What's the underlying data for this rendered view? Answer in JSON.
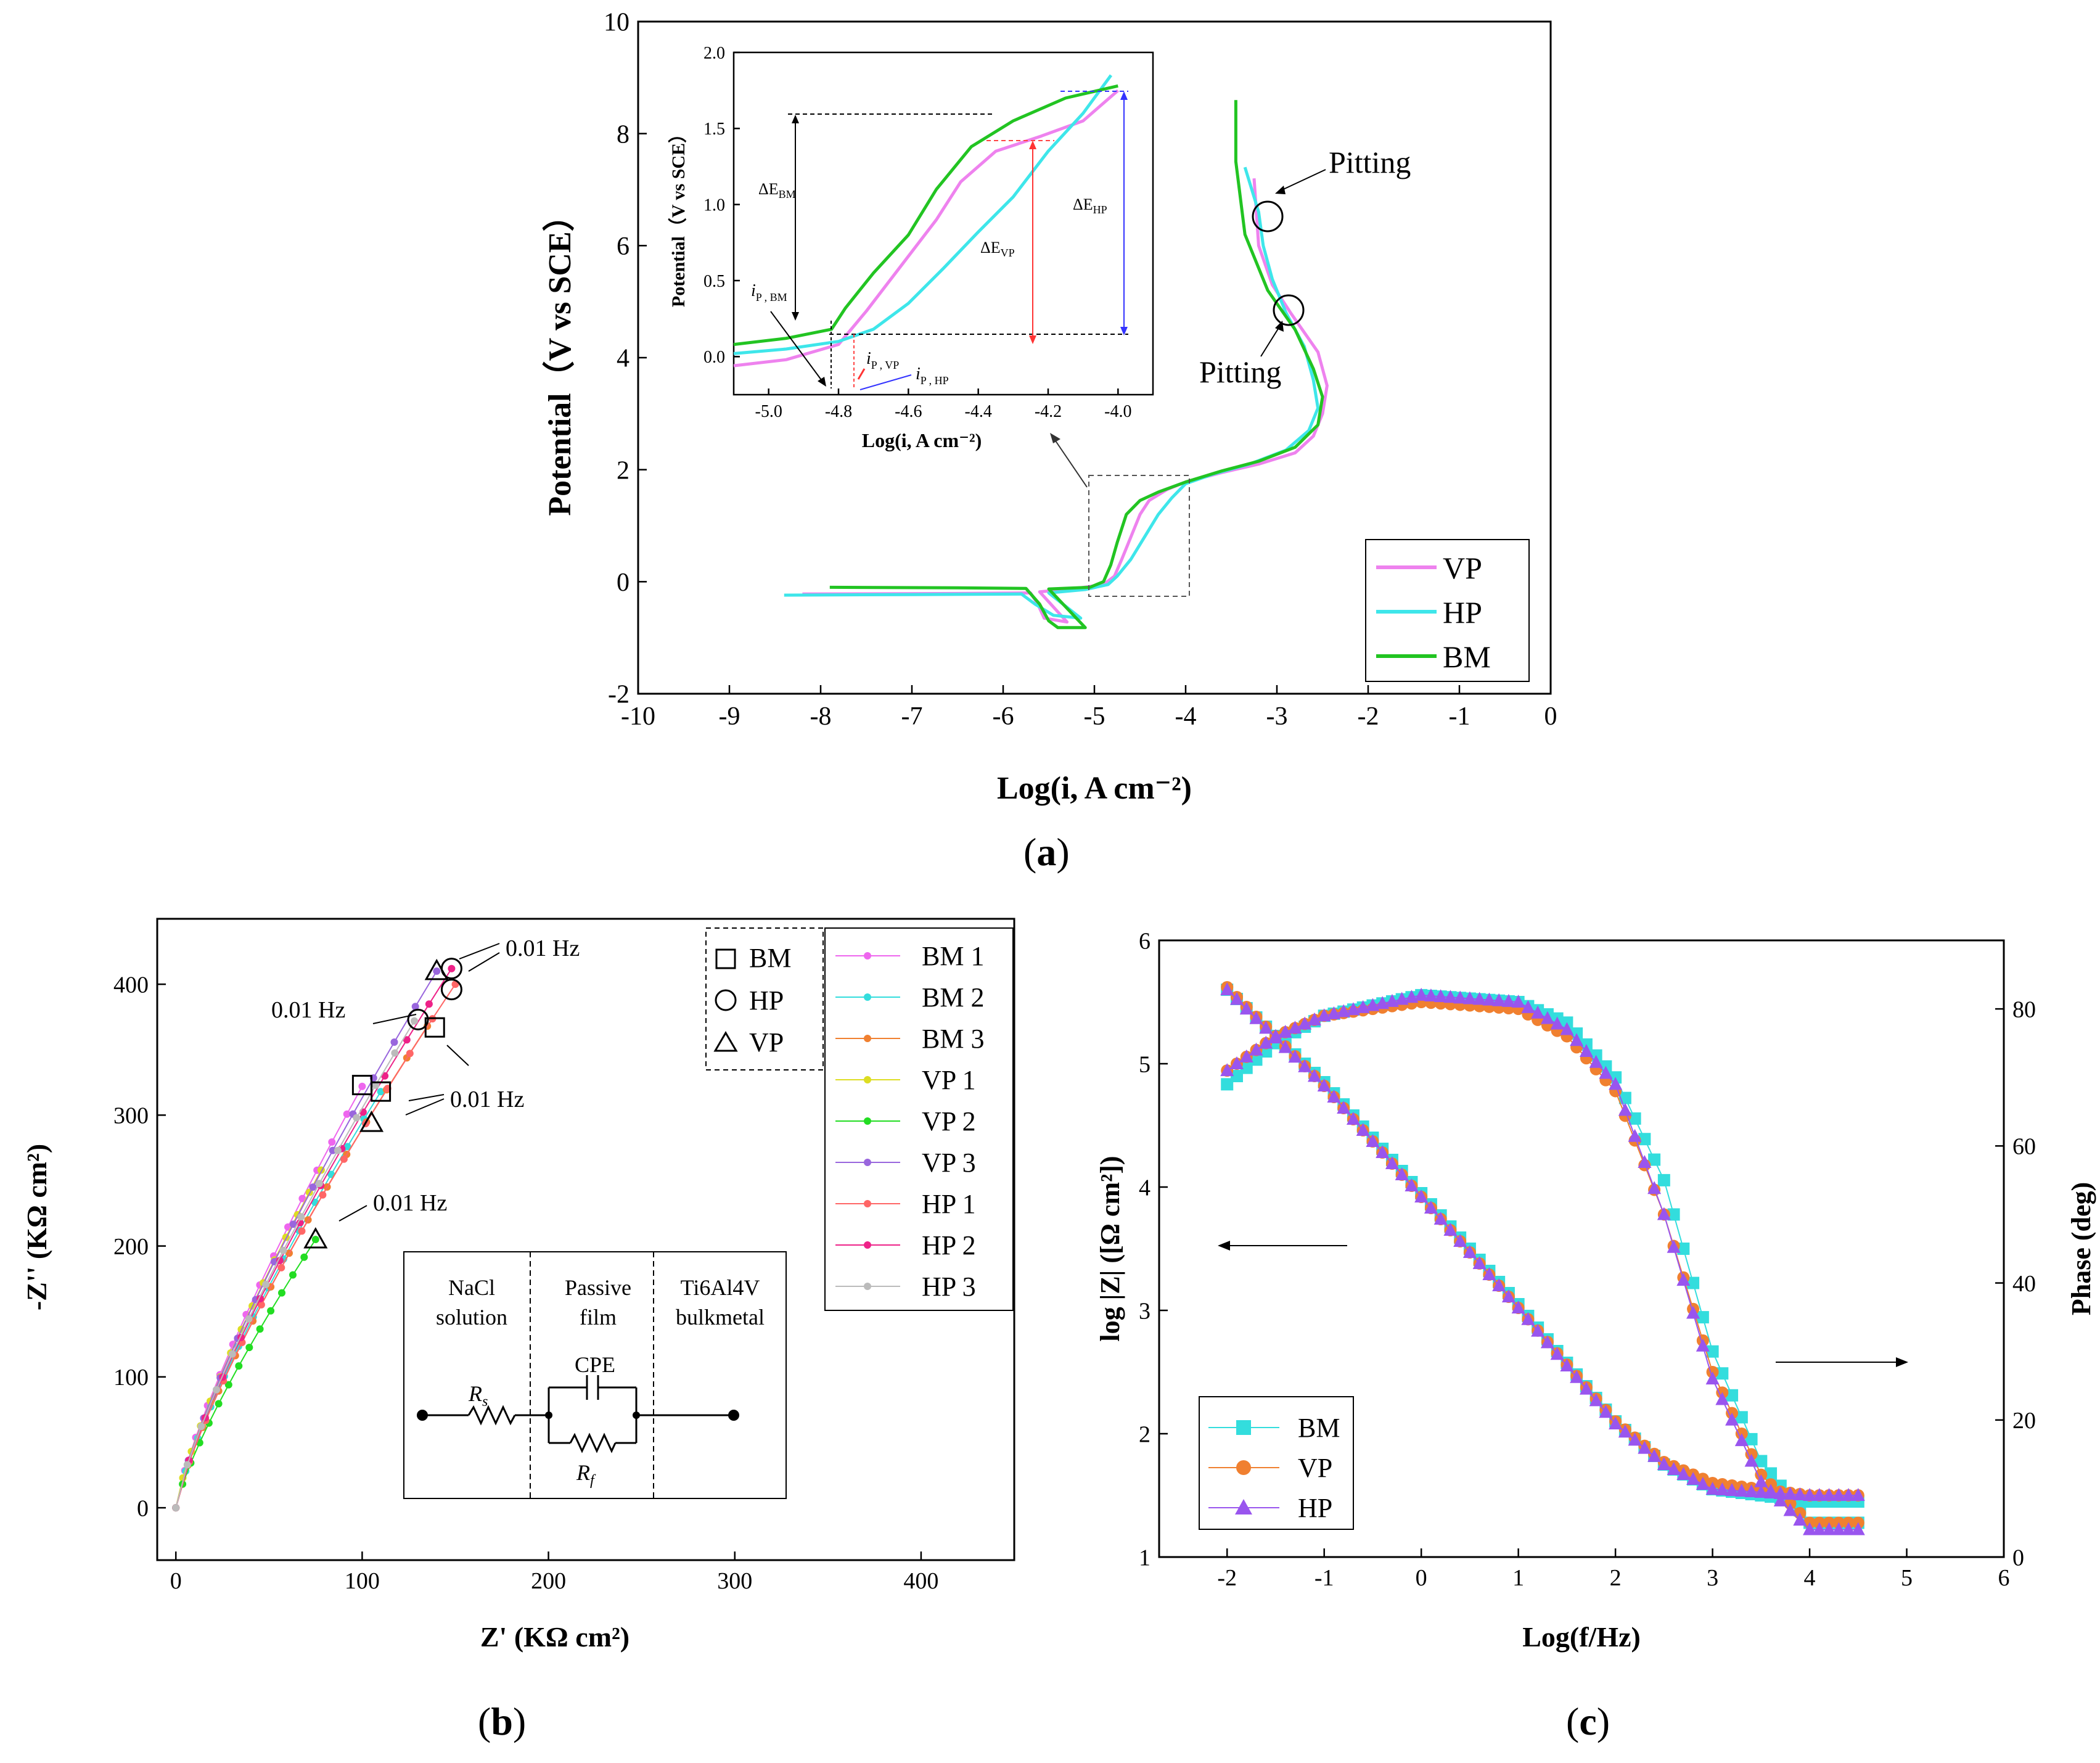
{
  "captions": {
    "a": "a",
    "b": "b",
    "c": "c"
  },
  "chart_data": [
    {
      "id": "a",
      "type": "line",
      "title": "",
      "xlabel": "Log(i, A cm⁻²)",
      "ylabel": "Potential（V vs SCE）",
      "xlim": [
        -10,
        0
      ],
      "ylim": [
        -2,
        10
      ],
      "xticks": [
        -10,
        -9,
        -8,
        -7,
        -6,
        -5,
        -4,
        -3,
        -2,
        -1,
        0
      ],
      "yticks": [
        -2,
        0,
        2,
        4,
        6,
        8,
        10
      ],
      "legend": {
        "position": "bottom-right",
        "entries": [
          "VP",
          "HP",
          "BM"
        ]
      },
      "colors": {
        "VP": "#ee82ee",
        "HP": "#3ee6ea",
        "BM": "#22c422"
      },
      "annotations": {
        "pitting_upper": "Pitting",
        "pitting_lower": "Pitting"
      },
      "series": [
        {
          "name": "VP",
          "points": [
            [
              -8.2,
              -0.22
            ],
            [
              -6.5,
              -0.21
            ],
            [
              -5.7,
              -0.2
            ],
            [
              -5.62,
              -0.4
            ],
            [
              -5.55,
              -0.65
            ],
            [
              -5.3,
              -0.72
            ],
            [
              -5.6,
              -0.18
            ],
            [
              -5.2,
              -0.12
            ],
            [
              -4.9,
              -0.05
            ],
            [
              -4.78,
              0.1
            ],
            [
              -4.7,
              0.4
            ],
            [
              -4.6,
              0.8
            ],
            [
              -4.5,
              1.2
            ],
            [
              -4.4,
              1.45
            ],
            [
              -4.2,
              1.65
            ],
            [
              -4.0,
              1.78
            ],
            [
              -3.6,
              1.95
            ],
            [
              -3.2,
              2.1
            ],
            [
              -2.8,
              2.3
            ],
            [
              -2.6,
              2.6
            ],
            [
              -2.5,
              3.0
            ],
            [
              -2.45,
              3.5
            ],
            [
              -2.55,
              4.1
            ],
            [
              -2.85,
              4.8
            ],
            [
              -3.05,
              5.3
            ],
            [
              -3.2,
              6.0
            ],
            [
              -3.25,
              7.2
            ]
          ]
        },
        {
          "name": "HP",
          "points": [
            [
              -8.4,
              -0.24
            ],
            [
              -7.0,
              -0.23
            ],
            [
              -5.8,
              -0.22
            ],
            [
              -5.65,
              -0.4
            ],
            [
              -5.45,
              -0.6
            ],
            [
              -5.15,
              -0.65
            ],
            [
              -5.5,
              -0.2
            ],
            [
              -5.1,
              -0.14
            ],
            [
              -4.85,
              -0.05
            ],
            [
              -4.75,
              0.1
            ],
            [
              -4.6,
              0.4
            ],
            [
              -4.45,
              0.8
            ],
            [
              -4.3,
              1.2
            ],
            [
              -4.15,
              1.5
            ],
            [
              -4.0,
              1.75
            ],
            [
              -3.7,
              1.92
            ],
            [
              -3.3,
              2.1
            ],
            [
              -2.9,
              2.35
            ],
            [
              -2.65,
              2.7
            ],
            [
              -2.55,
              3.1
            ],
            [
              -2.6,
              3.6
            ],
            [
              -2.7,
              4.2
            ],
            [
              -2.9,
              4.8
            ],
            [
              -3.05,
              5.4
            ],
            [
              -3.15,
              6.0
            ],
            [
              -3.2,
              6.6
            ],
            [
              -3.35,
              7.4
            ]
          ]
        },
        {
          "name": "BM",
          "points": [
            [
              -7.9,
              -0.1
            ],
            [
              -6.5,
              -0.11
            ],
            [
              -5.75,
              -0.12
            ],
            [
              -5.6,
              -0.4
            ],
            [
              -5.5,
              -0.7
            ],
            [
              -5.4,
              -0.82
            ],
            [
              -5.1,
              -0.82
            ],
            [
              -5.5,
              -0.13
            ],
            [
              -5.05,
              -0.1
            ],
            [
              -4.9,
              0.0
            ],
            [
              -4.82,
              0.3
            ],
            [
              -4.75,
              0.7
            ],
            [
              -4.65,
              1.2
            ],
            [
              -4.5,
              1.45
            ],
            [
              -4.3,
              1.6
            ],
            [
              -4.0,
              1.78
            ],
            [
              -3.6,
              1.98
            ],
            [
              -3.2,
              2.15
            ],
            [
              -2.8,
              2.4
            ],
            [
              -2.55,
              2.8
            ],
            [
              -2.5,
              3.3
            ],
            [
              -2.6,
              3.8
            ],
            [
              -2.8,
              4.5
            ],
            [
              -3.1,
              5.2
            ],
            [
              -3.35,
              6.2
            ],
            [
              -3.45,
              7.5
            ],
            [
              -3.45,
              8.6
            ]
          ]
        }
      ]
    },
    {
      "id": "a-inset",
      "type": "line",
      "xlabel": "Log(i, A cm⁻²)",
      "ylabel": "Potential（V vs SCE）",
      "xlim": [
        -5.1,
        -3.9
      ],
      "ylim": [
        -0.25,
        2.0
      ],
      "xticks": [
        "-5.0",
        "-4.8",
        "-4.6",
        "-4.4",
        "-4.2",
        "-4.0"
      ],
      "yticks": [
        "0.0",
        "0.5",
        "1.0",
        "1.5",
        "2.0"
      ],
      "annotations": {
        "dE_BM": "ΔE",
        "dE_BM_sub": "BM",
        "dE_VP": "ΔE",
        "dE_VP_sub": "VP",
        "dE_HP": "ΔE",
        "dE_HP_sub": "HP",
        "ip_BM": "i",
        "ip_BM_sub": "P , BM",
        "ip_VP": "i",
        "ip_VP_sub": "P , VP",
        "ip_HP": "i",
        "ip_HP_sub": "P , HP"
      },
      "series": [
        {
          "name": "VP",
          "points": [
            [
              -5.1,
              -0.06
            ],
            [
              -4.95,
              -0.02
            ],
            [
              -4.8,
              0.08
            ],
            [
              -4.72,
              0.3
            ],
            [
              -4.62,
              0.6
            ],
            [
              -4.52,
              0.9
            ],
            [
              -4.45,
              1.15
            ],
            [
              -4.35,
              1.35
            ],
            [
              -4.22,
              1.45
            ],
            [
              -4.1,
              1.55
            ],
            [
              -4.0,
              1.75
            ]
          ]
        },
        {
          "name": "HP",
          "points": [
            [
              -5.1,
              0.02
            ],
            [
              -4.95,
              0.05
            ],
            [
              -4.8,
              0.1
            ],
            [
              -4.7,
              0.18
            ],
            [
              -4.6,
              0.35
            ],
            [
              -4.5,
              0.58
            ],
            [
              -4.4,
              0.82
            ],
            [
              -4.3,
              1.05
            ],
            [
              -4.2,
              1.35
            ],
            [
              -4.1,
              1.6
            ],
            [
              -4.02,
              1.85
            ]
          ]
        },
        {
          "name": "BM",
          "points": [
            [
              -5.1,
              0.08
            ],
            [
              -4.95,
              0.12
            ],
            [
              -4.82,
              0.18
            ],
            [
              -4.78,
              0.32
            ],
            [
              -4.7,
              0.55
            ],
            [
              -4.6,
              0.8
            ],
            [
              -4.52,
              1.1
            ],
            [
              -4.42,
              1.38
            ],
            [
              -4.3,
              1.55
            ],
            [
              -4.15,
              1.7
            ],
            [
              -4.0,
              1.78
            ]
          ]
        }
      ]
    },
    {
      "id": "b",
      "type": "scatter",
      "xlabel": "Z' (KΩ  cm²)",
      "ylabel": "-Z'' (KΩ  cm²)",
      "xlim": [
        -10,
        450
      ],
      "ylim": [
        -40,
        450
      ],
      "xticks": [
        0,
        100,
        200,
        300,
        400
      ],
      "yticks": [
        0,
        100,
        200,
        300,
        400
      ],
      "legend": {
        "position": "top-right",
        "group_entries": [
          "BM",
          "HP",
          "VP"
        ],
        "entries": [
          "BM 1",
          "BM 2",
          "BM 3",
          "VP 1",
          "VP 2",
          "VP 3",
          "HP 1",
          "HP 2",
          "HP 3"
        ]
      },
      "colors": {
        "BM 1": "#ee66ee",
        "BM 2": "#33dddd",
        "BM 3": "#f08030",
        "VP 1": "#dddd22",
        "VP 2": "#22dd22",
        "VP 3": "#9966dd",
        "HP 1": "#ff6666",
        "HP 2": "#ee2288",
        "HP 3": "#bbbbbb"
      },
      "annotations": {
        "freq1": "0.01 Hz",
        "freq2": "0.01 Hz",
        "freq3": "0.01 Hz",
        "freq4": "0.01 Hz"
      },
      "circuit": {
        "region1": "NaCl",
        "region1b": "solution",
        "region2": "Passive",
        "region2b": "film",
        "region3": "Ti6Al4V",
        "region3b": "bulkmetal",
        "cpe": "CPE",
        "rs": "R",
        "rs_sub": "s",
        "rf": "R",
        "rf_sub": "f"
      },
      "series": [
        {
          "name": "BM 1",
          "end": [
            100,
            322
          ]
        },
        {
          "name": "BM 2",
          "end": [
            110,
            318
          ]
        },
        {
          "name": "BM 3",
          "end": [
            135,
            368
          ]
        },
        {
          "name": "VP 1",
          "end": [
            78,
            258
          ]
        },
        {
          "name": "VP 2",
          "end": [
            75,
            205
          ]
        },
        {
          "name": "VP 3",
          "end": [
            140,
            410
          ]
        },
        {
          "name": "HP 1",
          "end": [
            150,
            400
          ]
        },
        {
          "name": "HP 2",
          "end": [
            148,
            412
          ]
        },
        {
          "name": "HP 3",
          "end": [
            128,
            372
          ]
        }
      ],
      "endpoint_markers": [
        {
          "shape": "square",
          "x": 100,
          "y": 323
        },
        {
          "shape": "square",
          "x": 110,
          "y": 318
        },
        {
          "shape": "square",
          "x": 139,
          "y": 367
        },
        {
          "shape": "circle",
          "x": 130,
          "y": 373
        },
        {
          "shape": "circle",
          "x": 148,
          "y": 396
        },
        {
          "shape": "circle",
          "x": 148,
          "y": 412
        },
        {
          "shape": "triangle",
          "x": 75,
          "y": 205
        },
        {
          "shape": "triangle",
          "x": 105,
          "y": 294
        },
        {
          "shape": "triangle",
          "x": 140,
          "y": 410
        }
      ]
    },
    {
      "id": "c",
      "type": "scatter",
      "xlabel": "Log(f/Hz)",
      "ylabel": "log |Z| ([Ω cm²])",
      "y2label": "Phase (deg)",
      "xlim": [
        -2.7,
        6
      ],
      "ylim": [
        1,
        6
      ],
      "y2lim": [
        0,
        90
      ],
      "xticks": [
        -2,
        -1,
        0,
        1,
        2,
        3,
        4,
        5,
        6
      ],
      "yticks": [
        1,
        2,
        3,
        4,
        5,
        6
      ],
      "y2ticks": [
        0,
        20,
        40,
        60,
        80
      ],
      "legend": {
        "position": "bottom-left",
        "entries": [
          "BM",
          "VP",
          "HP"
        ]
      },
      "colors": {
        "BM": "#33dddd",
        "VP": "#f08030",
        "HP": "#9955ee"
      },
      "series": [
        {
          "name": "BM",
          "impedance": [
            [
              -2,
              5.6
            ],
            [
              -1,
              4.85
            ],
            [
              0,
              3.95
            ],
            [
              1,
              3.05
            ],
            [
              2,
              2.1
            ],
            [
              2.5,
              1.75
            ],
            [
              3,
              1.55
            ],
            [
              4,
              1.45
            ],
            [
              4.5,
              1.45
            ]
          ],
          "phase": [
            [
              -2,
              69
            ],
            [
              -1.5,
              75
            ],
            [
              -1,
              79
            ],
            [
              0,
              82
            ],
            [
              1,
              81
            ],
            [
              1.5,
              78
            ],
            [
              2,
              70
            ],
            [
              2.5,
              55
            ],
            [
              3,
              30
            ],
            [
              3.5,
              14
            ],
            [
              4,
              5
            ],
            [
              4.5,
              5
            ]
          ]
        },
        {
          "name": "VP",
          "impedance": [
            [
              -2,
              5.62
            ],
            [
              -1,
              4.82
            ],
            [
              0,
              3.92
            ],
            [
              1,
              3.02
            ],
            [
              2,
              2.1
            ],
            [
              2.5,
              1.77
            ],
            [
              3,
              1.6
            ],
            [
              4,
              1.5
            ],
            [
              4.5,
              1.5
            ]
          ],
          "phase": [
            [
              -2,
              71
            ],
            [
              -1.5,
              76
            ],
            [
              -1,
              79
            ],
            [
              0,
              81
            ],
            [
              1,
              80
            ],
            [
              1.5,
              76
            ],
            [
              2,
              68
            ],
            [
              2.5,
              50
            ],
            [
              3,
              27
            ],
            [
              3.5,
              12
            ],
            [
              4,
              5
            ],
            [
              4.5,
              5
            ]
          ]
        },
        {
          "name": "HP",
          "impedance": [
            [
              -2,
              5.6
            ],
            [
              -1,
              4.82
            ],
            [
              0,
              3.92
            ],
            [
              1,
              3.02
            ],
            [
              2,
              2.08
            ],
            [
              2.5,
              1.75
            ],
            [
              3,
              1.55
            ],
            [
              4,
              1.5
            ],
            [
              4.5,
              1.5
            ]
          ],
          "phase": [
            [
              -2,
              71
            ],
            [
              -1.5,
              76
            ],
            [
              -1,
              79
            ],
            [
              0,
              82
            ],
            [
              1,
              81
            ],
            [
              1.5,
              77
            ],
            [
              2,
              69
            ],
            [
              2.5,
              50
            ],
            [
              3,
              26
            ],
            [
              3.5,
              11
            ],
            [
              4,
              4
            ],
            [
              4.5,
              4
            ]
          ]
        }
      ]
    }
  ]
}
